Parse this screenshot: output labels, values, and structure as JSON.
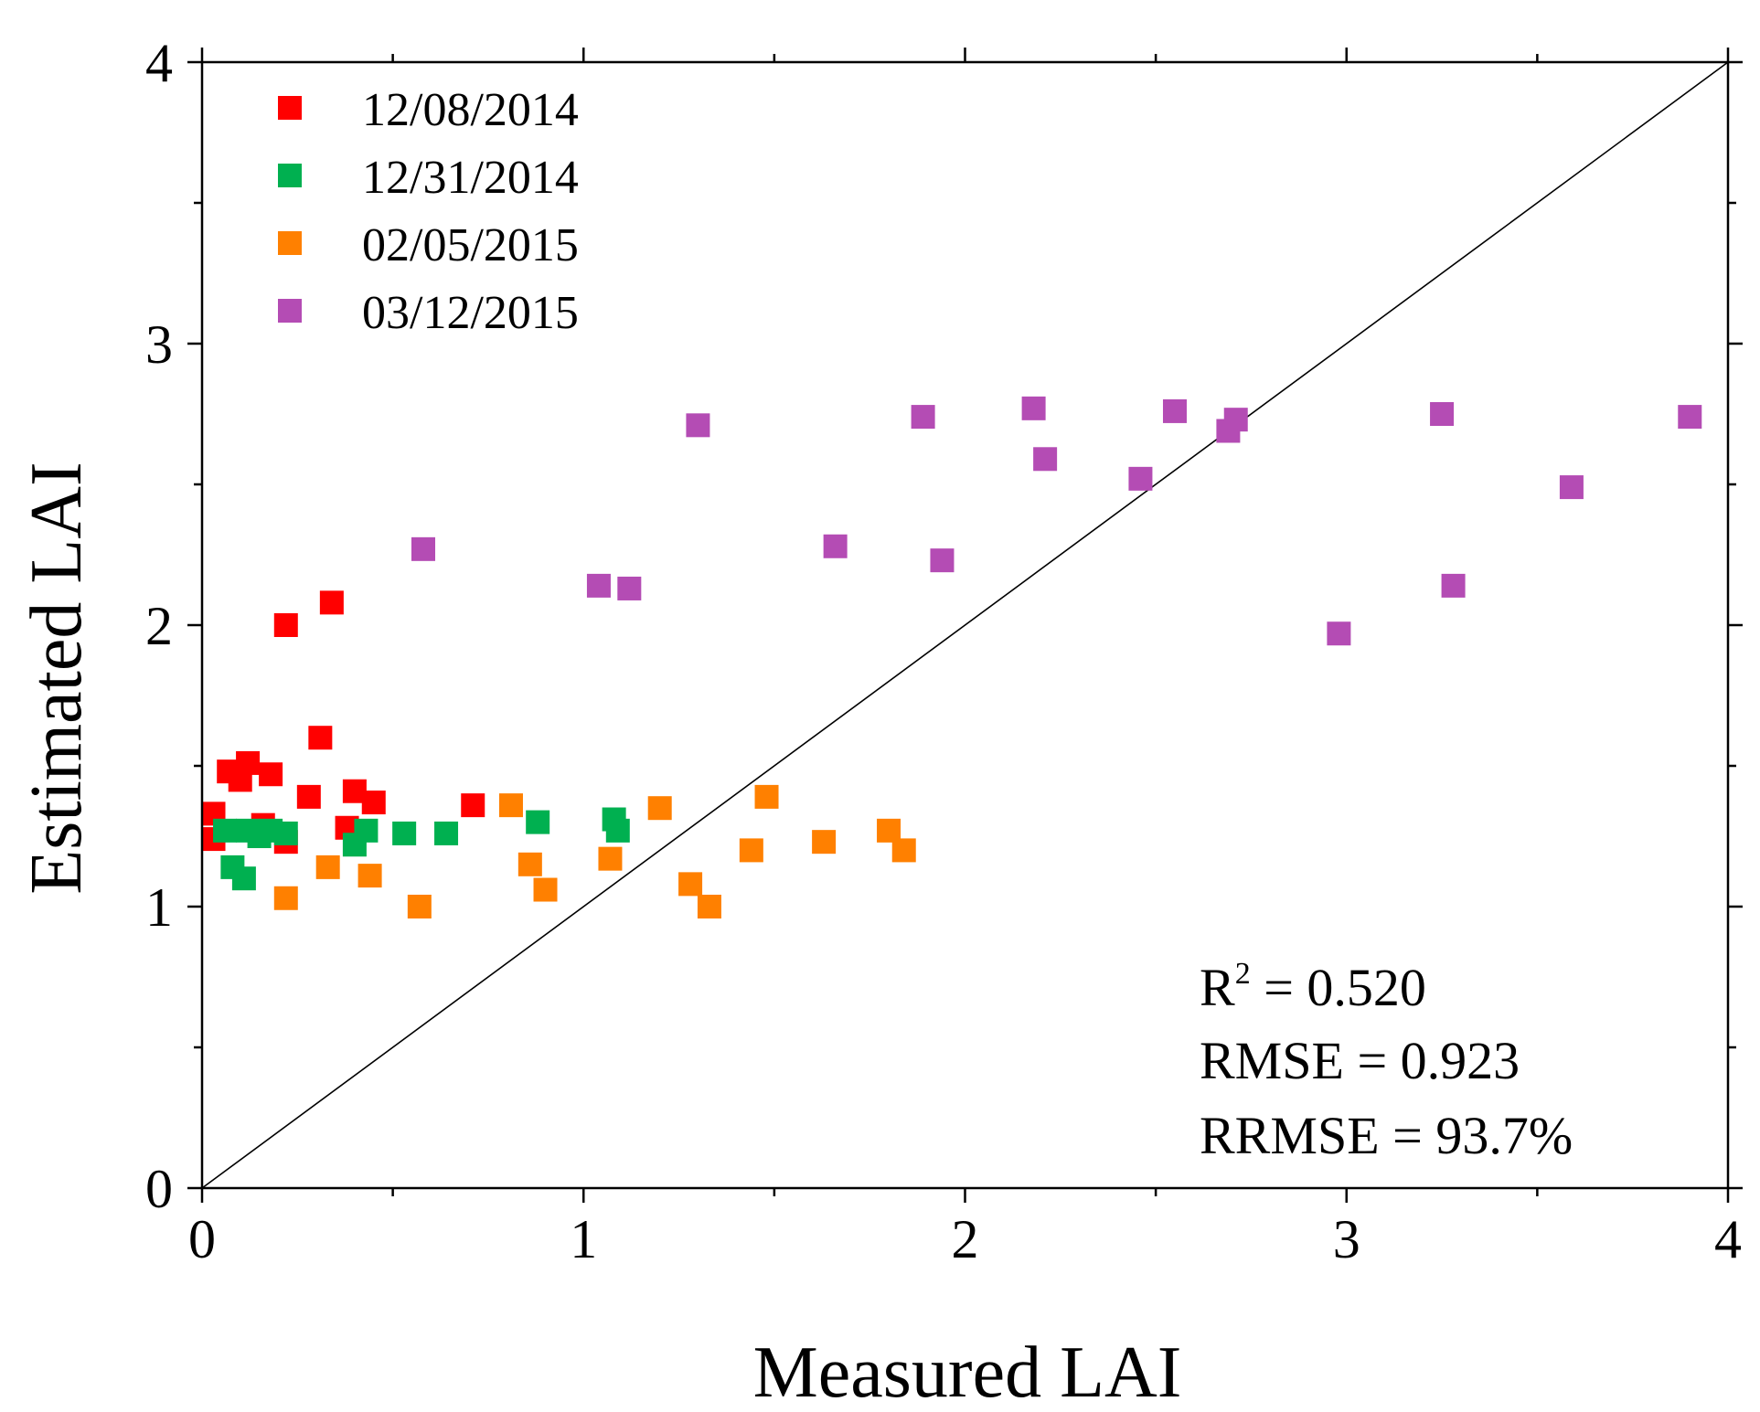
{
  "chart_data": {
    "type": "scatter",
    "title": "",
    "xlabel": "Measured LAI",
    "ylabel": "Estimated LAI",
    "xlim": [
      0,
      4
    ],
    "ylim": [
      0,
      4
    ],
    "major_ticks": [
      0,
      1,
      2,
      3,
      4
    ],
    "tick_labels": [
      "0",
      "1",
      "2",
      "3",
      "4"
    ],
    "minor_tick_step": 0.5,
    "grid": false,
    "reference_line": {
      "from": [
        0,
        0
      ],
      "to": [
        4,
        4
      ],
      "color": "#000000"
    },
    "legend_position": "top-left",
    "series": [
      {
        "name": "12/08/2014",
        "color": "#ff0000",
        "points": [
          [
            0.03,
            1.33
          ],
          [
            0.03,
            1.24
          ],
          [
            0.07,
            1.48
          ],
          [
            0.1,
            1.45
          ],
          [
            0.12,
            1.51
          ],
          [
            0.16,
            1.29
          ],
          [
            0.18,
            1.47
          ],
          [
            0.22,
            2.0
          ],
          [
            0.22,
            1.23
          ],
          [
            0.28,
            1.39
          ],
          [
            0.31,
            1.6
          ],
          [
            0.34,
            2.08
          ],
          [
            0.38,
            1.28
          ],
          [
            0.4,
            1.41
          ],
          [
            0.45,
            1.37
          ],
          [
            0.71,
            1.36
          ]
        ]
      },
      {
        "name": "12/31/2014",
        "color": "#00b050",
        "points": [
          [
            0.06,
            1.27
          ],
          [
            0.08,
            1.14
          ],
          [
            0.11,
            1.1
          ],
          [
            0.12,
            1.27
          ],
          [
            0.15,
            1.25
          ],
          [
            0.18,
            1.27
          ],
          [
            0.22,
            1.26
          ],
          [
            0.4,
            1.22
          ],
          [
            0.43,
            1.27
          ],
          [
            0.53,
            1.26
          ],
          [
            0.64,
            1.26
          ],
          [
            0.88,
            1.3
          ],
          [
            1.08,
            1.31
          ],
          [
            1.09,
            1.27
          ]
        ]
      },
      {
        "name": "02/05/2015",
        "color": "#ff8000",
        "points": [
          [
            0.22,
            1.03
          ],
          [
            0.33,
            1.14
          ],
          [
            0.44,
            1.11
          ],
          [
            0.57,
            1.0
          ],
          [
            0.81,
            1.36
          ],
          [
            0.86,
            1.15
          ],
          [
            0.9,
            1.06
          ],
          [
            1.07,
            1.17
          ],
          [
            1.2,
            1.35
          ],
          [
            1.28,
            1.08
          ],
          [
            1.33,
            1.0
          ],
          [
            1.44,
            1.2
          ],
          [
            1.48,
            1.39
          ],
          [
            1.63,
            1.23
          ],
          [
            1.8,
            1.27
          ],
          [
            1.84,
            1.2
          ]
        ]
      },
      {
        "name": "03/12/2015",
        "color": "#b44cb4",
        "points": [
          [
            0.58,
            2.27
          ],
          [
            1.04,
            2.14
          ],
          [
            1.12,
            2.13
          ],
          [
            1.3,
            2.71
          ],
          [
            1.66,
            2.28
          ],
          [
            1.89,
            2.74
          ],
          [
            1.94,
            2.23
          ],
          [
            2.18,
            2.77
          ],
          [
            2.21,
            2.59
          ],
          [
            2.46,
            2.52
          ],
          [
            2.55,
            2.76
          ],
          [
            2.69,
            2.69
          ],
          [
            2.71,
            2.73
          ],
          [
            2.98,
            1.97
          ],
          [
            3.25,
            2.75
          ],
          [
            3.28,
            2.14
          ],
          [
            3.59,
            2.49
          ],
          [
            3.9,
            2.74
          ]
        ]
      }
    ],
    "annotations": {
      "r2_label": "R",
      "r2_sup": "2",
      "r2_value": " = 0.520",
      "rmse": "RMSE = 0.923",
      "rrmse": "RRMSE = 93.7%"
    }
  }
}
